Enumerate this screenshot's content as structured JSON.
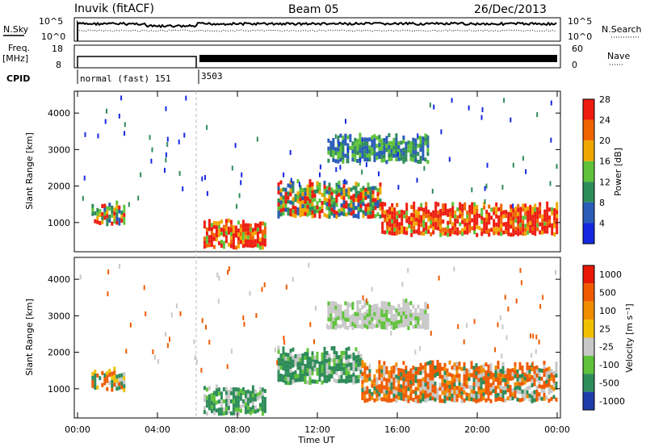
{
  "header": {
    "station": "Inuvik (fitACF)",
    "beam": "Beam 05",
    "date": "26/Dec/2013"
  },
  "top_panels": {
    "nsky_label": "N.Sky",
    "nsky_ticks": [
      "10^5",
      "10^0"
    ],
    "nsearch_label": "N.Search",
    "nsearch_ticks": [
      "10^5",
      "10^0"
    ],
    "freq_label": "Freq.",
    "freq_unit": "[MHz]",
    "freq_ticks": [
      "18",
      "8"
    ],
    "nave_label": "Nave",
    "nave_ticks": [
      "60",
      "0"
    ],
    "cpid_label": "CPID",
    "cpid_segments": [
      "normal (fast) 151",
      "3503"
    ]
  },
  "chart_data": [
    {
      "type": "heatmap",
      "title": "",
      "ylabel": "Slant Range [km]",
      "ylim": [
        200,
        4600
      ],
      "yticks": [
        "1000",
        "2000",
        "3000",
        "4000"
      ],
      "colorbar": {
        "label": "Power [dB]",
        "ticks": [
          "4",
          "8",
          "12",
          "16",
          "20",
          "24",
          "28"
        ],
        "colors": [
          "#1428e0",
          "#2a5cb8",
          "#2e8c5a",
          "#5fc23a",
          "#f0a800",
          "#f06400",
          "#ee1c10"
        ]
      },
      "regions": [
        {
          "t": [
            0.7,
            2.3
          ],
          "r": [
            900,
            1450
          ],
          "level": "mid"
        },
        {
          "t": [
            6.3,
            9.4
          ],
          "r": [
            250,
            1000
          ],
          "level": "high"
        },
        {
          "t": [
            10.0,
            15.2
          ],
          "r": [
            1100,
            2000
          ],
          "level": "mid"
        },
        {
          "t": [
            15.2,
            24.0
          ],
          "r": [
            600,
            1400
          ],
          "level": "high"
        },
        {
          "t": [
            12.5,
            17.5
          ],
          "r": [
            2600,
            3300
          ],
          "level": "low"
        }
      ]
    },
    {
      "type": "heatmap",
      "title": "",
      "xlabel": "Time UT",
      "xticks": [
        "00:00",
        "04:00",
        "08:00",
        "12:00",
        "16:00",
        "20:00",
        "00:00"
      ],
      "ylabel": "Slant Range [km]",
      "ylim": [
        200,
        4600
      ],
      "yticks": [
        "1000",
        "2000",
        "3000",
        "4000"
      ],
      "colorbar": {
        "label": "Velocity [m s⁻¹]",
        "ticks": [
          "1000",
          "500",
          "100",
          "25",
          "-25",
          "-100",
          "-500",
          "-1000"
        ],
        "colors": [
          "#1e3caa",
          "#2e8c5a",
          "#5fc23a",
          "#c8c8c8",
          "#f0c000",
          "#f08c00",
          "#f05a00",
          "#e81808"
        ]
      },
      "regions": [
        {
          "t": [
            0.7,
            2.3
          ],
          "r": [
            900,
            1450
          ],
          "level": "mixed"
        },
        {
          "t": [
            6.3,
            9.4
          ],
          "r": [
            250,
            1000
          ],
          "level": "green"
        },
        {
          "t": [
            10.0,
            14.2
          ],
          "r": [
            1100,
            2000
          ],
          "level": "green"
        },
        {
          "t": [
            14.2,
            24.0
          ],
          "r": [
            600,
            1600
          ],
          "level": "orange"
        },
        {
          "t": [
            12.5,
            17.5
          ],
          "r": [
            2600,
            3300
          ],
          "level": "gray"
        }
      ]
    }
  ]
}
